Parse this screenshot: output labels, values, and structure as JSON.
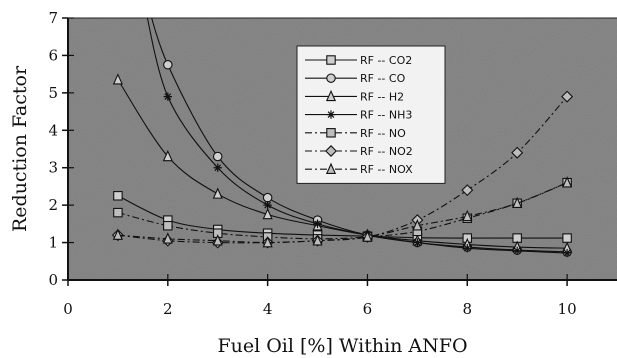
{
  "chart_data": {
    "type": "line",
    "title": "",
    "xlabel": "Fuel Oil [%] Within ANFO",
    "ylabel": "Reduction Factor",
    "xlim": [
      0,
      11
    ],
    "ylim": [
      0,
      7
    ],
    "xticks": [
      "0",
      "2",
      "4",
      "6",
      "8",
      "10"
    ],
    "yticks": [
      "0",
      "1",
      "2",
      "3",
      "4",
      "5",
      "6",
      "7"
    ],
    "grid": false,
    "legend_position": "top-right",
    "background": "#8a8a8a",
    "series": [
      {
        "name": "RF -- CO2",
        "marker": "square",
        "dash": "solid",
        "x": [
          1,
          2,
          3,
          4,
          5,
          6,
          7,
          8,
          9,
          10
        ],
        "y": [
          2.25,
          1.6,
          1.35,
          1.25,
          1.2,
          1.17,
          1.13,
          1.12,
          1.12,
          1.12
        ]
      },
      {
        "name": "RF -- CO",
        "marker": "circle",
        "dash": "solid",
        "x": [
          2,
          3,
          4,
          5,
          6,
          7,
          8,
          9,
          10
        ],
        "y": [
          5.75,
          3.3,
          2.2,
          1.6,
          1.2,
          1.0,
          0.88,
          0.8,
          0.75
        ]
      },
      {
        "name": "RF -- H2",
        "marker": "triangle",
        "dash": "solid",
        "x": [
          1,
          2,
          3,
          4,
          5,
          6,
          7,
          8,
          9,
          10
        ],
        "y": [
          5.35,
          3.3,
          2.3,
          1.75,
          1.45,
          1.2,
          1.05,
          0.95,
          0.88,
          0.85
        ]
      },
      {
        "name": "RF -- NH3",
        "marker": "star",
        "dash": "solid",
        "x": [
          2,
          3,
          4,
          5,
          6,
          7,
          8,
          9,
          10
        ],
        "y": [
          4.9,
          3.0,
          2.0,
          1.5,
          1.2,
          1.0,
          0.85,
          0.78,
          0.72
        ]
      },
      {
        "name": "RF -- NO",
        "marker": "open-square",
        "dash": "dashdot",
        "x": [
          1,
          2,
          3,
          4,
          5,
          6,
          7,
          8,
          9,
          10
        ],
        "y": [
          1.8,
          1.45,
          1.25,
          1.15,
          1.1,
          1.15,
          1.3,
          1.65,
          2.05,
          2.6
        ]
      },
      {
        "name": "RF -- NO2",
        "marker": "diamond",
        "dash": "dashdot",
        "x": [
          1,
          2,
          3,
          4,
          5,
          6,
          7,
          8,
          9,
          10
        ],
        "y": [
          1.2,
          1.05,
          1.0,
          1.0,
          1.05,
          1.15,
          1.6,
          2.4,
          3.4,
          4.9
        ]
      },
      {
        "name": "RF -- NOX",
        "marker": "open-triangle",
        "dash": "dashdot",
        "x": [
          1,
          2,
          3,
          4,
          5,
          6,
          7,
          8,
          9,
          10
        ],
        "y": [
          1.2,
          1.1,
          1.05,
          1.0,
          1.05,
          1.15,
          1.45,
          1.7,
          2.05,
          2.6
        ]
      }
    ]
  }
}
